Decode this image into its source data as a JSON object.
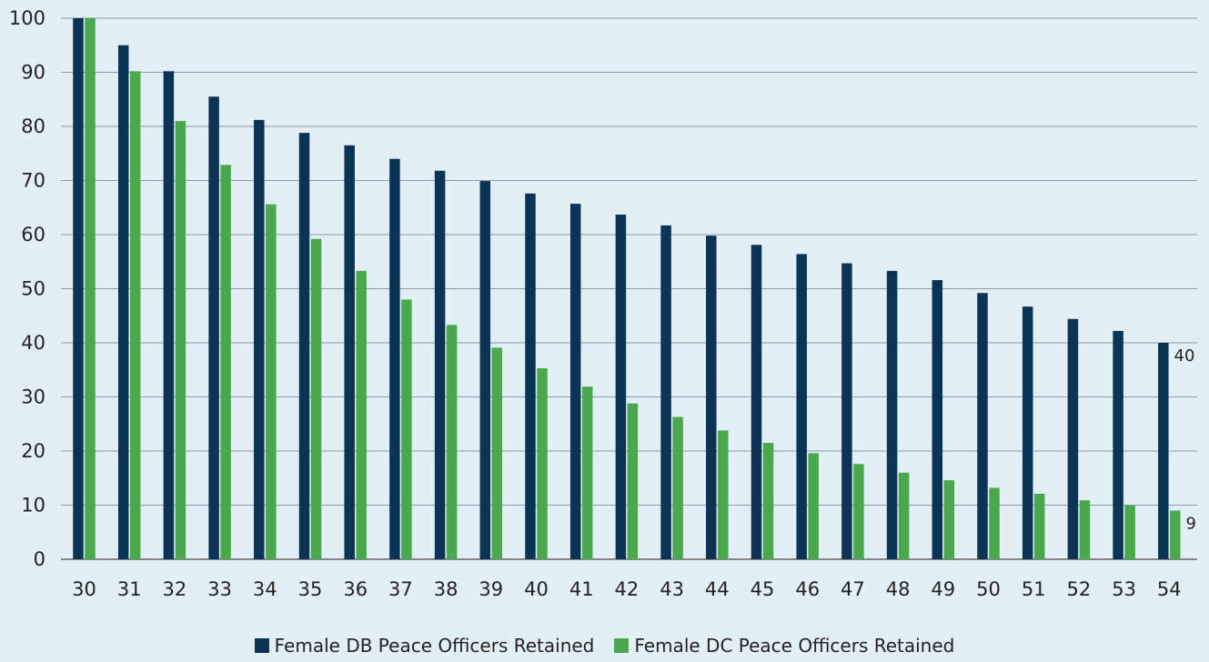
{
  "chart_data": {
    "type": "bar",
    "categories": [
      "30",
      "31",
      "32",
      "33",
      "34",
      "35",
      "36",
      "37",
      "38",
      "39",
      "40",
      "41",
      "42",
      "43",
      "44",
      "45",
      "46",
      "47",
      "48",
      "49",
      "50",
      "51",
      "52",
      "53",
      "54"
    ],
    "series": [
      {
        "name": "Female DB Peace Officers Retained",
        "color": "#0b3354",
        "values": [
          100,
          95,
          90.2,
          85.5,
          81.2,
          78.8,
          76.5,
          74,
          71.8,
          69.9,
          67.6,
          65.7,
          63.7,
          61.7,
          59.8,
          58.1,
          56.4,
          54.7,
          53.3,
          51.6,
          49.2,
          46.7,
          44.4,
          42.2,
          40
        ]
      },
      {
        "name": "Female DC Peace Officers Retained",
        "color": "#4aa84c",
        "values": [
          100,
          90.2,
          81,
          72.9,
          65.6,
          59.2,
          53.3,
          48,
          43.3,
          39.1,
          35.3,
          31.9,
          28.8,
          26.3,
          23.8,
          21.5,
          19.6,
          17.6,
          16,
          14.6,
          13.2,
          12.1,
          10.9,
          10,
          9
        ]
      }
    ],
    "yticks": [
      "0",
      "10",
      "20",
      "30",
      "40",
      "50",
      "60",
      "70",
      "80",
      "90",
      "100"
    ],
    "ylim": [
      0,
      100
    ],
    "grid": true,
    "legend": "bottom-center",
    "data_labels": [
      {
        "series": 0,
        "index": 24,
        "text": "40"
      },
      {
        "series": 1,
        "index": 24,
        "text": "9"
      }
    ]
  }
}
